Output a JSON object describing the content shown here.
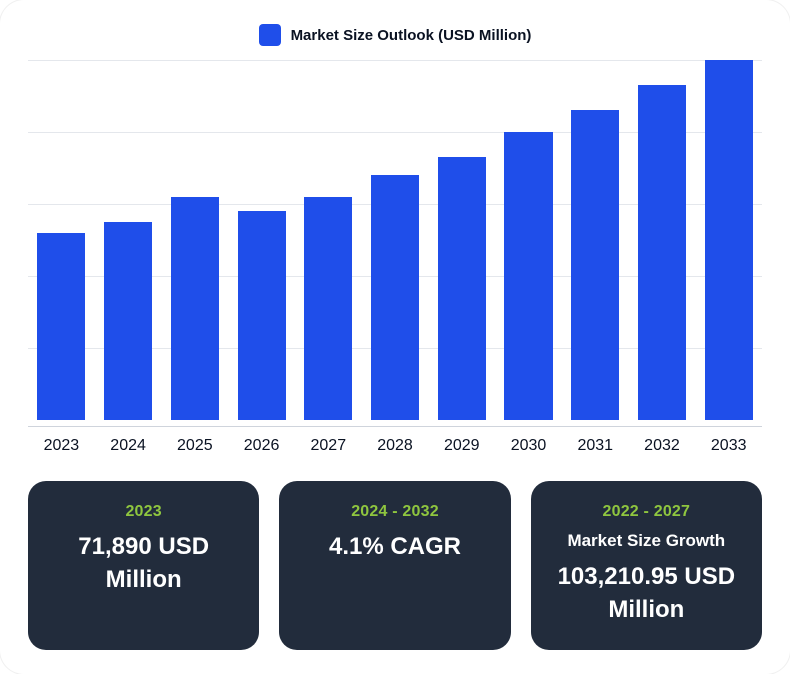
{
  "legend": {
    "label": "Market Size Outlook (USD Million)",
    "swatch_color": "#1f4eea"
  },
  "chart": {
    "type": "bar",
    "categories": [
      "2023",
      "2024",
      "2025",
      "2026",
      "2027",
      "2028",
      "2029",
      "2030",
      "2031",
      "2032",
      "2033"
    ],
    "values": [
      52,
      55,
      62,
      58,
      62,
      68,
      73,
      80,
      86,
      93,
      100
    ],
    "ylim": [
      0,
      100
    ],
    "gridline_count": 5,
    "bar_color": "#1f4eea",
    "grid_color": "#e4e7ec",
    "axis_color": "#cfd4dc",
    "background_color": "#ffffff",
    "bar_width_ratio": 0.72,
    "xaxis_fontsize": 16,
    "xaxis_color": "#0a1222"
  },
  "stats": {
    "card_bg": "#222c3c",
    "period_color": "#8fc63f",
    "text_color": "#ffffff",
    "items": [
      {
        "period": "2023",
        "subtitle": "",
        "value": "71,890 USD Million"
      },
      {
        "period": "2024 - 2032",
        "subtitle": "",
        "value": "4.1% CAGR"
      },
      {
        "period": "2022 - 2027",
        "subtitle": "Market Size Growth",
        "value": "103,210.95 USD Million"
      }
    ]
  }
}
